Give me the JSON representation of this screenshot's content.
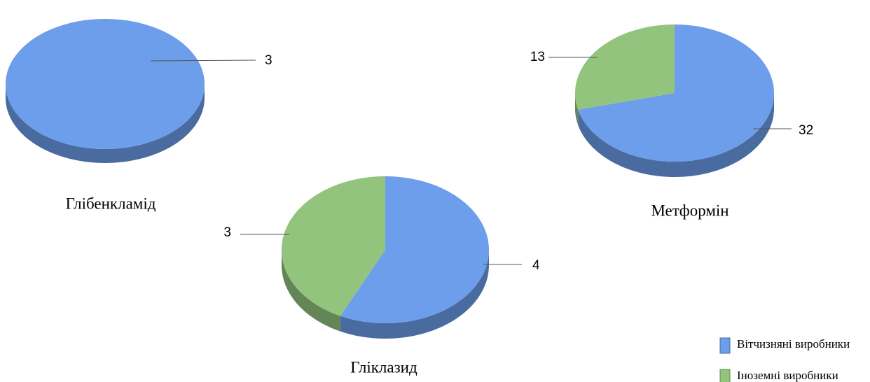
{
  "legend": [
    {
      "name": "Вітчизняні виробники",
      "color": "#6d9eeb"
    },
    {
      "name": "Іноземні виробники",
      "color": "#93c47d"
    }
  ],
  "chart_data": [
    {
      "type": "pie",
      "title": "Глібенкламід",
      "values": [
        3
      ]
    },
    {
      "type": "pie",
      "title": "Гліклазид",
      "values": [
        4,
        3
      ]
    },
    {
      "type": "pie",
      "title": "Метформін",
      "values": [
        32,
        13
      ]
    }
  ]
}
